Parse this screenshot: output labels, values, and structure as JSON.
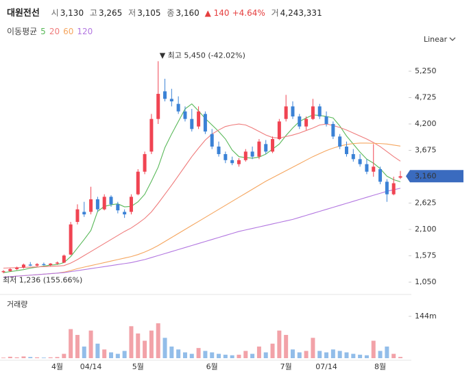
{
  "header": {
    "name": "대원전선",
    "open_label": "시",
    "open": "3,130",
    "high_label": "고",
    "high": "3,265",
    "low_label": "저",
    "low": "3,105",
    "close_label": "종",
    "close": "3,160",
    "change": "▲ 140",
    "change_pct": "+4.64%",
    "volume_label": "거",
    "volume": "4,243,331",
    "ma_label": "이동평균",
    "scale_mode": "Linear"
  },
  "chart_data": [
    {
      "type": "candlestick",
      "categories": [
        null,
        null,
        null,
        null,
        null,
        null,
        null,
        null,
        "4월",
        null,
        null,
        null,
        null,
        "04/14",
        null,
        null,
        null,
        null,
        null,
        null,
        "5월",
        null,
        null,
        null,
        null,
        null,
        null,
        null,
        null,
        null,
        null,
        "6월",
        null,
        null,
        null,
        null,
        null,
        null,
        null,
        null,
        null,
        null,
        "7월",
        null,
        null,
        null,
        null,
        null,
        "07/14",
        null,
        null,
        null,
        null,
        null,
        null,
        null,
        "8월",
        null,
        null,
        null
      ],
      "open": [
        1250,
        1270,
        1310,
        1340,
        1400,
        1380,
        1410,
        1390,
        1420,
        1440,
        1600,
        2250,
        2450,
        2450,
        2700,
        2500,
        2750,
        2600,
        2450,
        2450,
        2800,
        3250,
        3650,
        4300,
        4850,
        4700,
        4600,
        4450,
        4300,
        4150,
        4400,
        4000,
        3750,
        3600,
        3480,
        3400,
        3480,
        3650,
        3550,
        3800,
        3650,
        3900,
        4300,
        4550,
        4350,
        4150,
        4300,
        4550,
        4350,
        4200,
        3950,
        3750,
        3600,
        3500,
        3400,
        3250,
        3300,
        3050,
        2800,
        3130
      ],
      "high": [
        1290,
        1330,
        1360,
        1420,
        1450,
        1430,
        1440,
        1430,
        1460,
        1600,
        2250,
        2600,
        2650,
        2950,
        2750,
        2800,
        2780,
        2650,
        2500,
        2800,
        3300,
        3650,
        4400,
        5450,
        5100,
        4900,
        4750,
        4550,
        4500,
        4550,
        4450,
        4100,
        3850,
        3650,
        3550,
        3520,
        3700,
        3750,
        3900,
        3880,
        3950,
        4300,
        4780,
        4650,
        4400,
        4350,
        4700,
        4600,
        4450,
        4250,
        4000,
        3850,
        3700,
        3600,
        3500,
        3800,
        3350,
        3100,
        3150,
        3265
      ],
      "low": [
        1230,
        1260,
        1290,
        1320,
        1370,
        1360,
        1380,
        1370,
        1400,
        1430,
        1590,
        2200,
        2350,
        2400,
        2450,
        2480,
        2550,
        2420,
        2330,
        2400,
        2780,
        3200,
        3600,
        4200,
        4650,
        4550,
        4400,
        4250,
        4050,
        4100,
        4000,
        3700,
        3550,
        3420,
        3380,
        3350,
        3450,
        3500,
        3500,
        3600,
        3620,
        3880,
        4250,
        4300,
        4100,
        4080,
        4280,
        4300,
        4150,
        3900,
        3700,
        3550,
        3450,
        3350,
        3200,
        3150,
        3000,
        2650,
        2780,
        3105
      ],
      "close": [
        1270,
        1310,
        1340,
        1400,
        1380,
        1410,
        1390,
        1420,
        1440,
        1580,
        2200,
        2500,
        2400,
        2700,
        2500,
        2750,
        2600,
        2480,
        2400,
        2750,
        3250,
        3600,
        4300,
        4800,
        4700,
        4650,
        4450,
        4300,
        4100,
        4450,
        4050,
        3750,
        3600,
        3480,
        3420,
        3480,
        3650,
        3550,
        3850,
        3650,
        3900,
        4250,
        4550,
        4350,
        4150,
        4300,
        4550,
        4350,
        4200,
        3950,
        3750,
        3600,
        3500,
        3400,
        3250,
        3350,
        3050,
        2800,
        3020,
        3160
      ],
      "up_color": "#f04452",
      "down_color": "#3b82d6",
      "ylim": [
        873,
        5714
      ],
      "yticks": [
        {
          "value": 1050,
          "label": "1,050"
        },
        {
          "value": 1575,
          "label": "1,575"
        },
        {
          "value": 2100,
          "label": "2,100"
        },
        {
          "value": 2625,
          "label": "2,625"
        },
        {
          "value": 3675,
          "label": "3,675"
        },
        {
          "value": 4200,
          "label": "4,200"
        },
        {
          "value": 4725,
          "label": "4,725"
        },
        {
          "value": 5250,
          "label": "5,250"
        }
      ],
      "series": [
        {
          "name": "5",
          "color": "#58b858",
          "values": [
            1240,
            1260,
            1280,
            1300,
            1330,
            1350,
            1370,
            1390,
            1400,
            1440,
            1560,
            1730,
            1900,
            2080,
            2460,
            2560,
            2590,
            2610,
            2550,
            2560,
            2650,
            2800,
            3060,
            3340,
            3730,
            4000,
            4250,
            4500,
            4600,
            4460,
            4310,
            4180,
            4050,
            3900,
            3680,
            3550,
            3530,
            3520,
            3540,
            3600,
            3700,
            3800,
            3970,
            4120,
            4250,
            4320,
            4380,
            4370,
            4350,
            4320,
            4160,
            3960,
            3800,
            3640,
            3500,
            3420,
            3310,
            3160,
            3090,
            3050
          ]
        },
        {
          "name": "20",
          "color": "#ef7b7b",
          "values": [
            1330,
            1335,
            1340,
            1345,
            1350,
            1355,
            1360,
            1365,
            1370,
            1380,
            1430,
            1500,
            1580,
            1660,
            1740,
            1820,
            1900,
            1980,
            2060,
            2130,
            2220,
            2320,
            2450,
            2620,
            2800,
            2980,
            3170,
            3360,
            3550,
            3720,
            3880,
            4000,
            4080,
            4150,
            4180,
            4200,
            4180,
            4120,
            4050,
            3980,
            3930,
            3920,
            3950,
            3980,
            4020,
            4070,
            4120,
            4180,
            4200,
            4170,
            4130,
            4080,
            4020,
            3960,
            3900,
            3830,
            3750,
            3650,
            3550,
            3460
          ]
        },
        {
          "name": "60",
          "color": "#f5a55e",
          "values": [
            1150,
            1160,
            1170,
            1180,
            1190,
            1200,
            1210,
            1220,
            1230,
            1250,
            1280,
            1320,
            1350,
            1380,
            1410,
            1440,
            1470,
            1500,
            1530,
            1560,
            1600,
            1650,
            1710,
            1780,
            1860,
            1940,
            2020,
            2100,
            2180,
            2260,
            2340,
            2420,
            2500,
            2580,
            2660,
            2740,
            2820,
            2900,
            2980,
            3060,
            3130,
            3200,
            3270,
            3340,
            3410,
            3480,
            3550,
            3610,
            3670,
            3720,
            3760,
            3790,
            3810,
            3820,
            3820,
            3815,
            3810,
            3800,
            3780,
            3760
          ]
        },
        {
          "name": "120",
          "color": "#b276e0",
          "values": [
            1150,
            1160,
            1170,
            1180,
            1190,
            1200,
            1210,
            1220,
            1230,
            1240,
            1260,
            1280,
            1300,
            1320,
            1340,
            1360,
            1380,
            1400,
            1420,
            1440,
            1470,
            1500,
            1540,
            1580,
            1620,
            1660,
            1700,
            1740,
            1780,
            1820,
            1860,
            1900,
            1940,
            1980,
            2020,
            2060,
            2090,
            2120,
            2150,
            2180,
            2210,
            2240,
            2270,
            2300,
            2340,
            2380,
            2420,
            2460,
            2500,
            2540,
            2580,
            2620,
            2660,
            2700,
            2740,
            2780,
            2820,
            2860,
            2890,
            2920
          ]
        }
      ],
      "max_marker": {
        "value": 5450,
        "label": "▼ 최고 5,450 (-42.02%)"
      },
      "min_marker": {
        "value": 1236,
        "label": "최저 1,236 (155.66%)"
      }
    },
    {
      "type": "bar",
      "title": "거래량",
      "values": [
        2000000,
        5000000,
        3000000,
        6000000,
        4000000,
        3000000,
        2000000,
        3000000,
        4000000,
        15000000,
        100000000,
        80000000,
        40000000,
        95000000,
        50000000,
        30000000,
        20000000,
        15000000,
        25000000,
        110000000,
        85000000,
        60000000,
        95000000,
        120000000,
        70000000,
        40000000,
        30000000,
        20000000,
        15000000,
        35000000,
        25000000,
        20000000,
        15000000,
        12000000,
        10000000,
        12000000,
        25000000,
        15000000,
        40000000,
        20000000,
        50000000,
        95000000,
        80000000,
        30000000,
        20000000,
        25000000,
        70000000,
        25000000,
        20000000,
        30000000,
        25000000,
        20000000,
        15000000,
        12000000,
        10000000,
        60000000,
        25000000,
        40000000,
        15000000,
        4243331
      ],
      "up_color": "#f2a2a8",
      "down_color": "#92bde9",
      "ylim": [
        0,
        212000000
      ],
      "yticks": [
        {
          "value": 144000000,
          "label": "144m"
        }
      ]
    }
  ]
}
